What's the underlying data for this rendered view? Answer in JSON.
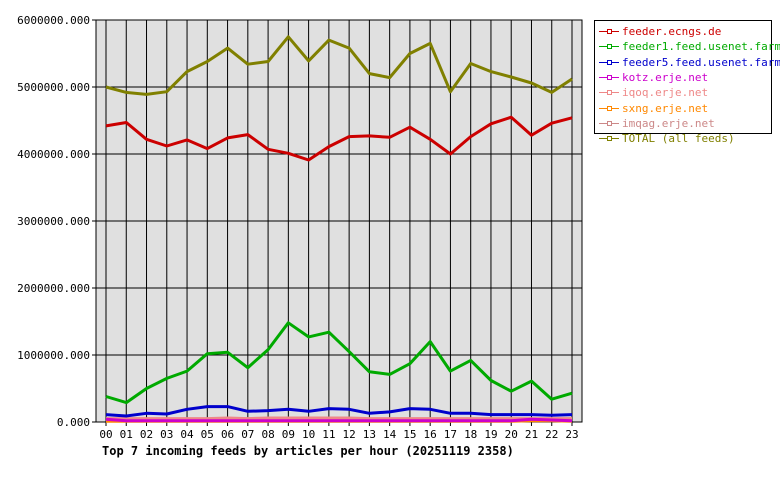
{
  "chart_data": {
    "type": "line",
    "title": "Top 7 incoming feeds by articles per hour (20251119 2358)",
    "xlabel": "",
    "ylabel": "",
    "ylim": [
      0,
      6000000
    ],
    "yticks": [
      "0.000",
      "1000000.000",
      "2000000.000",
      "3000000.000",
      "4000000.000",
      "5000000.000",
      "6000000.000"
    ],
    "grid": true,
    "legend_position": "right",
    "x": [
      "00",
      "01",
      "02",
      "03",
      "04",
      "05",
      "06",
      "07",
      "08",
      "09",
      "10",
      "11",
      "12",
      "13",
      "14",
      "15",
      "16",
      "17",
      "18",
      "19",
      "20",
      "21",
      "22",
      "23"
    ],
    "series": [
      {
        "name": "feeder.ecngs.de",
        "color": "#cc0000",
        "values": [
          4420000,
          4470000,
          4220000,
          4120000,
          4210000,
          4080000,
          4240000,
          4290000,
          4070000,
          4010000,
          3910000,
          4110000,
          4260000,
          4270000,
          4250000,
          4400000,
          4220000,
          4000000,
          4260000,
          4450000,
          4550000,
          4280000,
          4460000,
          4540000
        ]
      },
      {
        "name": "feeder1.feed.usenet.farm",
        "color": "#00aa00",
        "values": [
          380000,
          290000,
          500000,
          650000,
          760000,
          1020000,
          1040000,
          810000,
          1080000,
          1480000,
          1270000,
          1340000,
          1050000,
          750000,
          710000,
          870000,
          1200000,
          760000,
          920000,
          620000,
          460000,
          610000,
          340000,
          430000
        ]
      },
      {
        "name": "feeder5.feed.usenet.farm",
        "color": "#0000cc",
        "values": [
          110000,
          90000,
          130000,
          120000,
          190000,
          230000,
          230000,
          160000,
          170000,
          190000,
          160000,
          200000,
          190000,
          130000,
          150000,
          200000,
          190000,
          130000,
          130000,
          110000,
          110000,
          110000,
          100000,
          110000
        ]
      },
      {
        "name": "kotz.erje.net",
        "color": "#cc00cc",
        "values": [
          40000,
          20000,
          20000,
          20000,
          20000,
          20000,
          20000,
          20000,
          20000,
          20000,
          20000,
          20000,
          20000,
          20000,
          20000,
          20000,
          20000,
          20000,
          20000,
          20000,
          20000,
          40000,
          30000,
          20000
        ]
      },
      {
        "name": "iqoq.erje.net",
        "color": "#ee8888",
        "values": [
          50000,
          50000,
          50000,
          50000,
          50000,
          50000,
          60000,
          50000,
          60000,
          60000,
          60000,
          60000,
          60000,
          50000,
          50000,
          50000,
          50000,
          50000,
          50000,
          50000,
          50000,
          50000,
          50000,
          50000
        ]
      },
      {
        "name": "sxng.erje.net",
        "color": "#ff8800",
        "values": [
          10000,
          10000,
          10000,
          10000,
          10000,
          10000,
          10000,
          10000,
          10000,
          10000,
          10000,
          10000,
          10000,
          10000,
          10000,
          10000,
          10000,
          10000,
          10000,
          10000,
          10000,
          20000,
          20000,
          10000
        ]
      },
      {
        "name": "imqag.erje.net",
        "color": "#cc8888",
        "values": [
          30000,
          30000,
          30000,
          30000,
          30000,
          30000,
          30000,
          30000,
          30000,
          30000,
          30000,
          30000,
          30000,
          30000,
          30000,
          30000,
          30000,
          30000,
          30000,
          30000,
          30000,
          30000,
          30000,
          30000
        ]
      },
      {
        "name": "TOTAL (all feeds)",
        "color": "#808000",
        "values": [
          5000000,
          4920000,
          4890000,
          4930000,
          5230000,
          5380000,
          5580000,
          5340000,
          5380000,
          5750000,
          5390000,
          5700000,
          5580000,
          5200000,
          5140000,
          5500000,
          5650000,
          4930000,
          5350000,
          5230000,
          5150000,
          5060000,
          4920000,
          5120000
        ]
      }
    ]
  },
  "caption": "Top 7 incoming feeds by articles per hour (20251119 2358)",
  "legend": [
    {
      "label": "feeder.ecngs.de",
      "color": "#cc0000"
    },
    {
      "label": "feeder1.feed.usenet.farm",
      "color": "#00aa00"
    },
    {
      "label": "feeder5.feed.usenet.farm",
      "color": "#0000cc"
    },
    {
      "label": "kotz.erje.net",
      "color": "#cc00cc"
    },
    {
      "label": "iqoq.erje.net",
      "color": "#ee8888"
    },
    {
      "label": "sxng.erje.net",
      "color": "#ff8800"
    },
    {
      "label": "imqag.erje.net",
      "color": "#cc8888"
    },
    {
      "label": "TOTAL (all feeds)",
      "color": "#808000"
    }
  ],
  "colors": {
    "plot_bg": "#e0e0e0",
    "grid": "#000000"
  }
}
